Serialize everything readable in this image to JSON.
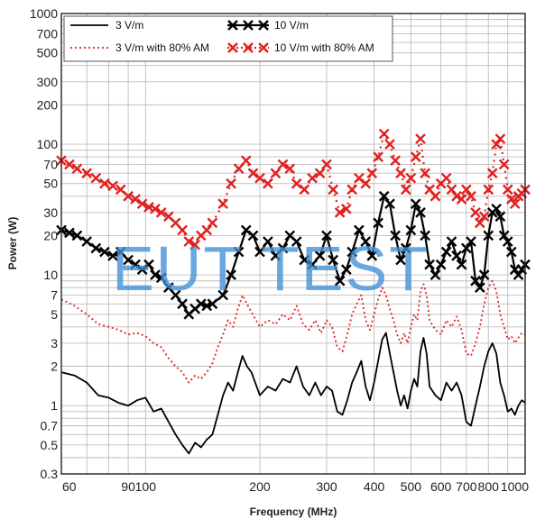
{
  "chart_data": {
    "type": "line",
    "title": "",
    "xlabel": "Frequency (MHz)",
    "ylabel": "Power (W)",
    "x_scale": "log",
    "y_scale": "log",
    "xlim": [
      60,
      1000
    ],
    "ylim": [
      0.3,
      1000
    ],
    "x_ticks": [
      60,
      90,
      100,
      200,
      300,
      400,
      500,
      600,
      700,
      800,
      1000
    ],
    "x_tick_labels": [
      "60",
      "90",
      "100",
      "200",
      "300",
      "400",
      "500",
      "600",
      "700",
      "800",
      "1000"
    ],
    "y_ticks": [
      0.3,
      0.5,
      0.7,
      1,
      2,
      3,
      5,
      7,
      10,
      20,
      30,
      50,
      70,
      100,
      200,
      300,
      500,
      700,
      1000
    ],
    "y_tick_labels": [
      "0.3",
      "0.5",
      "0.7",
      "1",
      "2",
      "3",
      "5",
      "7",
      "10",
      "20",
      "30",
      "50",
      "70",
      "100",
      "200",
      "300",
      "500",
      "700",
      "1000"
    ],
    "grid": true,
    "legend_position": "top",
    "series": [
      {
        "name": "3 V/m",
        "color": "#000000",
        "style": "solid",
        "marker": "none",
        "x": [
          60,
          65,
          70,
          75,
          80,
          85,
          90,
          95,
          100,
          105,
          110,
          115,
          120,
          125,
          130,
          135,
          140,
          145,
          150,
          155,
          160,
          165,
          170,
          175,
          180,
          185,
          190,
          200,
          210,
          220,
          230,
          240,
          250,
          260,
          270,
          280,
          290,
          300,
          310,
          320,
          330,
          340,
          350,
          360,
          370,
          380,
          390,
          400,
          410,
          420,
          430,
          440,
          450,
          460,
          470,
          480,
          490,
          500,
          510,
          520,
          530,
          540,
          550,
          560,
          580,
          600,
          620,
          640,
          660,
          680,
          700,
          720,
          740,
          760,
          780,
          800,
          820,
          840,
          860,
          880,
          900,
          920,
          940,
          960,
          980,
          1000
        ],
        "y": [
          1.8,
          1.7,
          1.5,
          1.2,
          1.15,
          1.05,
          1.0,
          1.1,
          1.15,
          0.9,
          0.95,
          0.75,
          0.6,
          0.5,
          0.43,
          0.52,
          0.48,
          0.55,
          0.6,
          0.85,
          1.2,
          1.5,
          1.3,
          1.8,
          2.4,
          2.0,
          1.8,
          1.2,
          1.4,
          1.3,
          1.6,
          1.5,
          2.0,
          1.4,
          1.2,
          1.5,
          1.2,
          1.4,
          1.3,
          0.9,
          0.85,
          1.1,
          1.5,
          1.8,
          2.2,
          1.4,
          1.1,
          1.5,
          2.2,
          3.2,
          3.6,
          2.5,
          1.8,
          1.3,
          1.0,
          1.2,
          0.95,
          1.3,
          1.6,
          1.4,
          2.6,
          3.3,
          2.5,
          1.4,
          1.2,
          1.1,
          1.5,
          1.3,
          1.5,
          1.2,
          0.75,
          0.7,
          1.0,
          1.4,
          2.0,
          2.6,
          3.0,
          2.5,
          1.5,
          1.2,
          0.9,
          0.95,
          0.85,
          1.0,
          1.1,
          1.05
        ]
      },
      {
        "name": "3 V/m with 80% AM",
        "color": "#e02020",
        "style": "dotted",
        "marker": "none",
        "x": [
          60,
          65,
          70,
          75,
          80,
          85,
          90,
          95,
          100,
          105,
          110,
          115,
          120,
          125,
          130,
          135,
          140,
          145,
          150,
          155,
          160,
          165,
          170,
          175,
          180,
          185,
          190,
          200,
          210,
          220,
          230,
          240,
          250,
          260,
          270,
          280,
          290,
          300,
          310,
          320,
          330,
          340,
          350,
          360,
          370,
          380,
          390,
          400,
          410,
          420,
          430,
          440,
          450,
          460,
          470,
          480,
          490,
          500,
          510,
          520,
          530,
          540,
          550,
          560,
          580,
          600,
          620,
          640,
          660,
          680,
          700,
          720,
          740,
          760,
          780,
          800,
          820,
          840,
          860,
          880,
          900,
          920,
          940,
          960,
          980,
          1000
        ],
        "y": [
          6.5,
          5.8,
          5.0,
          4.2,
          4.0,
          3.8,
          3.5,
          3.6,
          3.4,
          3.0,
          2.8,
          2.3,
          2.0,
          1.8,
          1.5,
          1.7,
          1.6,
          1.8,
          2.1,
          2.8,
          3.5,
          4.5,
          4.0,
          5.5,
          7.0,
          6.0,
          5.2,
          4.0,
          4.5,
          4.2,
          5.0,
          4.5,
          5.8,
          4.2,
          3.8,
          4.5,
          3.6,
          4.5,
          4.0,
          2.8,
          2.6,
          3.5,
          5.0,
          6.0,
          7.0,
          4.5,
          3.8,
          5.0,
          6.5,
          8.0,
          7.0,
          5.5,
          4.5,
          3.5,
          3.0,
          3.6,
          3.0,
          4.0,
          5.0,
          4.5,
          7.5,
          8.5,
          7.0,
          4.5,
          3.8,
          3.5,
          4.5,
          4.0,
          4.8,
          3.8,
          2.5,
          2.4,
          3.0,
          4.0,
          6.0,
          8.0,
          9.0,
          7.5,
          5.0,
          4.0,
          3.2,
          3.4,
          3.0,
          3.3,
          3.6,
          3.5
        ]
      },
      {
        "name": "10 V/m",
        "color": "#000000",
        "style": "solid",
        "marker": "x",
        "x": [
          60,
          63,
          66,
          70,
          74,
          78,
          82,
          86,
          90,
          94,
          98,
          102,
          106,
          110,
          115,
          120,
          125,
          130,
          135,
          140,
          145,
          150,
          160,
          168,
          176,
          184,
          192,
          200,
          210,
          220,
          230,
          240,
          250,
          262,
          275,
          288,
          300,
          312,
          325,
          338,
          350,
          365,
          380,
          395,
          410,
          425,
          440,
          455,
          470,
          485,
          500,
          515,
          530,
          545,
          560,
          580,
          600,
          620,
          640,
          660,
          680,
          700,
          720,
          740,
          760,
          780,
          800,
          820,
          840,
          860,
          880,
          900,
          920,
          940,
          960,
          980,
          1000
        ],
        "y": [
          22,
          21,
          20,
          18,
          16,
          15,
          14,
          15,
          13,
          12,
          11,
          12,
          10,
          9.5,
          8,
          7,
          6,
          5,
          5.5,
          6,
          5.8,
          6,
          7,
          10,
          15,
          22,
          20,
          15,
          18,
          14,
          16,
          20,
          18,
          13,
          12,
          14,
          20,
          13,
          9,
          11,
          15,
          22,
          18,
          14,
          25,
          40,
          35,
          20,
          13,
          16,
          22,
          35,
          30,
          20,
          12,
          10,
          12,
          15,
          18,
          14,
          12,
          16,
          18,
          9,
          8,
          10,
          20,
          30,
          32,
          28,
          20,
          18,
          15,
          11,
          10,
          11,
          12
        ]
      },
      {
        "name": "10 V/m with 80% AM",
        "color": "#e02020",
        "style": "dotted",
        "marker": "x",
        "x": [
          60,
          63,
          66,
          70,
          74,
          78,
          82,
          86,
          90,
          94,
          98,
          102,
          106,
          110,
          115,
          120,
          125,
          130,
          135,
          140,
          145,
          150,
          160,
          168,
          176,
          184,
          192,
          200,
          210,
          220,
          230,
          240,
          250,
          262,
          275,
          288,
          300,
          312,
          325,
          338,
          350,
          365,
          380,
          395,
          410,
          425,
          440,
          455,
          470,
          485,
          500,
          515,
          530,
          545,
          560,
          580,
          600,
          620,
          640,
          660,
          680,
          700,
          720,
          740,
          760,
          780,
          800,
          820,
          840,
          860,
          880,
          900,
          920,
          940,
          960,
          980,
          1000
        ],
        "y": [
          75,
          70,
          65,
          60,
          55,
          50,
          48,
          45,
          40,
          38,
          35,
          33,
          32,
          30,
          28,
          25,
          22,
          18,
          17,
          20,
          22,
          25,
          35,
          50,
          65,
          75,
          60,
          55,
          50,
          60,
          70,
          65,
          50,
          45,
          55,
          60,
          70,
          45,
          30,
          32,
          45,
          55,
          50,
          60,
          80,
          120,
          100,
          75,
          60,
          45,
          55,
          80,
          110,
          60,
          45,
          40,
          50,
          55,
          45,
          40,
          38,
          45,
          40,
          30,
          25,
          28,
          45,
          60,
          100,
          110,
          70,
          45,
          38,
          35,
          40,
          42,
          45
        ]
      }
    ]
  },
  "watermark": "EUT TEST"
}
